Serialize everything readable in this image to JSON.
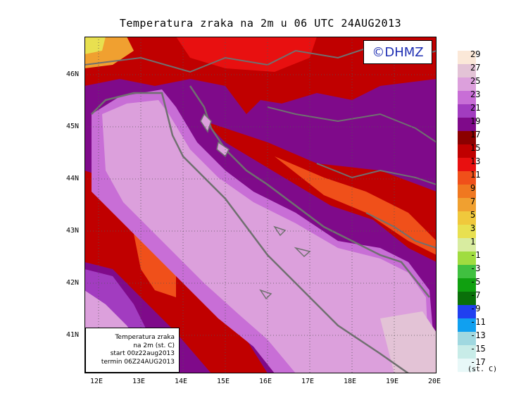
{
  "title": "Temperatura zraka na 2m u 06 UTC 24AUG2013",
  "logo_text": "©DHMZ",
  "info_box": {
    "line1": "Temperatura zraka",
    "line2": "na 2m (st. C)",
    "line3": "start 00z22aug2013",
    "line4": "termin 06Z24AUG2013"
  },
  "lon_labels": [
    "12E",
    "13E",
    "14E",
    "15E",
    "16E",
    "17E",
    "18E",
    "19E",
    "20E"
  ],
  "lat_labels": [
    "46N",
    "45N",
    "44N",
    "43N",
    "42N",
    "41N"
  ],
  "legend": {
    "units": "(st. C)",
    "labels": [
      "29",
      "27",
      "25",
      "23",
      "21",
      "19",
      "17",
      "15",
      "13",
      "11",
      "9",
      "7",
      "5",
      "3",
      "1",
      "-1",
      "-3",
      "-5",
      "-7",
      "-9",
      "-11",
      "-13",
      "-15",
      "-17"
    ],
    "colors": [
      "#fbe8d8",
      "#e3c3d6",
      "#dca0dc",
      "#c86ed6",
      "#a23cc0",
      "#7f0a8a",
      "#8b0000",
      "#c00000",
      "#e81010",
      "#f0501a",
      "#f07820",
      "#f0a030",
      "#f0c83c",
      "#e8e050",
      "#d8eca0",
      "#a0dc40",
      "#40c040",
      "#10a010",
      "#0a700a",
      "#2040f0",
      "#10a0f0",
      "#a0d8e0",
      "#c8ece8",
      "#e8f8f8"
    ]
  },
  "colors": {
    "sea_light": "#dca0dc",
    "sea_mid": "#c88fd6",
    "land_hot": "#7f0a8a",
    "land_red": "#c00000",
    "land_orange": "#f0501a",
    "coast": "#707070"
  }
}
